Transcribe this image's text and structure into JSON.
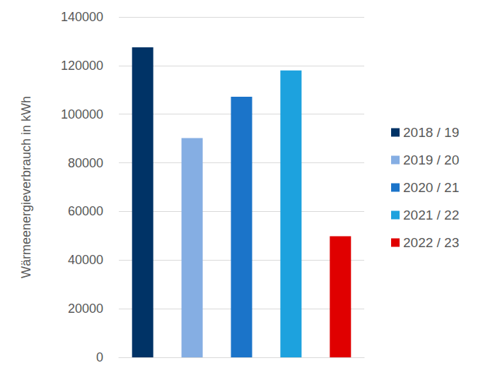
{
  "chart_data": {
    "type": "bar",
    "y_label": "Wärmeenergieverbrauch in kWh",
    "categories": [
      null
    ],
    "series": [
      {
        "name": "2018 / 19",
        "color": "#003366",
        "values": [
          127500
        ]
      },
      {
        "name": "2019 / 20",
        "color": "#85aee3",
        "values": [
          90200
        ]
      },
      {
        "name": "2020 / 21",
        "color": "#1b74c9",
        "values": [
          107200
        ]
      },
      {
        "name": "2021 / 22",
        "color": "#1da2de",
        "values": [
          118000
        ]
      },
      {
        "name": "2022 / 23",
        "color": "#e00000",
        "values": [
          49800
        ]
      }
    ],
    "ylim": [
      0,
      140000
    ],
    "yticks": [
      0,
      20000,
      40000,
      60000,
      80000,
      100000,
      120000,
      140000
    ],
    "grid": true,
    "legend": "right",
    "tick_labels": "y"
  }
}
